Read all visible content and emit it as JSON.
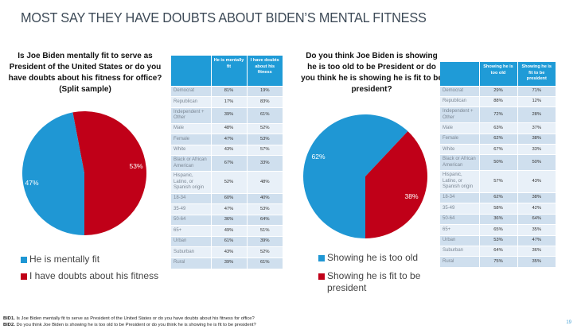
{
  "page": {
    "title": "MOST SAY THEY HAVE DOUBTS ABOUT BIDEN’S MENTAL FITNESS",
    "page_number": "19"
  },
  "colors": {
    "blue": "#1f97d4",
    "red": "#c00018",
    "table_header": "#1f9bd7"
  },
  "left": {
    "question": "Is Joe Biden mentally fit to serve as President of the United States or do you have doubts about his fitness for office? (Split sample)",
    "legend": [
      "He is mentally fit",
      "I have doubts about his fitness"
    ],
    "table": {
      "headers": [
        "",
        "He is mentally fit",
        "I have doubts about his fitness"
      ],
      "rows": [
        [
          "Democrat",
          "81%",
          "19%"
        ],
        [
          "Republican",
          "17%",
          "83%"
        ],
        [
          "Independent + Other",
          "39%",
          "61%"
        ],
        [
          "Male",
          "48%",
          "52%"
        ],
        [
          "Female",
          "47%",
          "53%"
        ],
        [
          "White",
          "43%",
          "57%"
        ],
        [
          "Black or African American",
          "67%",
          "33%"
        ],
        [
          "Hispanic, Latino, or Spanish origin",
          "52%",
          "48%"
        ],
        [
          "18-34",
          "60%",
          "40%"
        ],
        [
          "35-49",
          "47%",
          "53%"
        ],
        [
          "50-64",
          "36%",
          "64%"
        ],
        [
          "65+",
          "49%",
          "51%"
        ],
        [
          "Urban",
          "61%",
          "39%"
        ],
        [
          "Suburban",
          "43%",
          "52%"
        ],
        [
          "Rural",
          "39%",
          "61%"
        ]
      ]
    }
  },
  "right": {
    "question": "Do you think Joe Biden is showing he is too old to be President or do you think he is showing he is fit to be president?",
    "legend": [
      "Showing he is too old",
      "Showing he is fit to be president"
    ],
    "table": {
      "headers": [
        "",
        "Showing he is too old",
        "Showing he is fit to be president"
      ],
      "rows": [
        [
          "Democrat",
          "29%",
          "71%"
        ],
        [
          "Republican",
          "88%",
          "12%"
        ],
        [
          "Independent + Other",
          "72%",
          "28%"
        ],
        [
          "Male",
          "63%",
          "37%"
        ],
        [
          "Female",
          "62%",
          "38%"
        ],
        [
          "White",
          "67%",
          "33%"
        ],
        [
          "Black or African American",
          "50%",
          "50%"
        ],
        [
          "Hispanic, Latino, or Spanish origin",
          "57%",
          "43%"
        ],
        [
          "18-34",
          "62%",
          "38%"
        ],
        [
          "35-49",
          "58%",
          "42%"
        ],
        [
          "50-64",
          "36%",
          "64%"
        ],
        [
          "65+",
          "65%",
          "35%"
        ],
        [
          "Urban",
          "53%",
          "47%"
        ],
        [
          "Suburban",
          "64%",
          "36%"
        ],
        [
          "Rural",
          "75%",
          "35%"
        ]
      ]
    }
  },
  "footnotes": [
    {
      "id": "BID1.",
      "text": " Is Joe Biden mentally fit to serve as President of the United States or do you have doubts about his fitness for office?"
    },
    {
      "id": "BID2.",
      "text": " Do you think Joe Biden is showing he is too old to be President or do you think he is showing he is fit to be president?"
    }
  ],
  "chart_data": [
    {
      "type": "pie",
      "title": "Is Joe Biden mentally fit to serve as President of the United States or do you have doubts about his fitness for office? (Split sample)",
      "categories": [
        "He is mentally fit",
        "I have doubts about his fitness"
      ],
      "values": [
        47,
        53
      ],
      "labels": [
        "47%",
        "53%"
      ],
      "colors": [
        "#1f97d4",
        "#c00018"
      ],
      "legend": "bottom-left"
    },
    {
      "type": "pie",
      "title": "Do you think Joe Biden is showing he is too old to be President or do you think he is showing he is fit to be president?",
      "categories": [
        "Showing he is too old",
        "Showing he is fit to be president"
      ],
      "values": [
        62,
        38
      ],
      "labels": [
        "62%",
        "38%"
      ],
      "colors": [
        "#1f97d4",
        "#c00018"
      ],
      "legend": "bottom-left"
    }
  ]
}
